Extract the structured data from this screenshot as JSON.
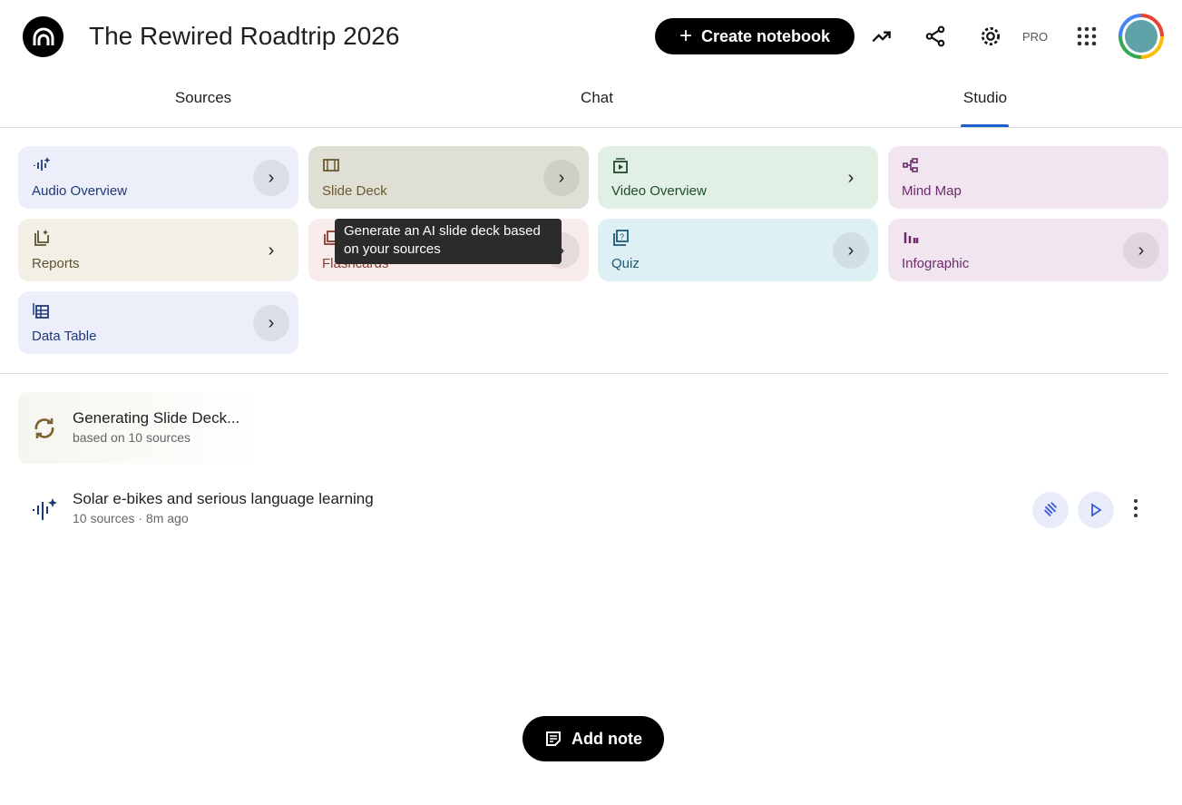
{
  "header": {
    "title": "The Rewired Roadtrip 2026",
    "create_label": "Create notebook",
    "pro_badge": "PRO"
  },
  "tabs": [
    {
      "label": "Sources"
    },
    {
      "label": "Chat"
    },
    {
      "label": "Studio",
      "active": true
    }
  ],
  "studio_tools": [
    {
      "label": "Audio Overview",
      "icon": "audio-waveform-icon",
      "bg": "#eceff9",
      "fg": "#1f3a7a"
    },
    {
      "label": "Slide Deck",
      "icon": "slides-icon",
      "bg": "#e0dfd6",
      "fg": "#6b5a2e"
    },
    {
      "label": "Video Overview",
      "icon": "video-icon",
      "bg": "#e1f0e4",
      "fg": "#1e4d2b"
    },
    {
      "label": "Mind Map",
      "icon": "mind-map-icon",
      "bg": "#f1e6f0",
      "fg": "#6e2a6a"
    },
    {
      "label": "Reports",
      "icon": "reports-icon",
      "bg": "#f2f0e6",
      "fg": "#5e5330"
    },
    {
      "label": "Flashcards",
      "icon": "flashcards-icon",
      "bg": "#f8ecea",
      "fg": "#8a3b2f"
    },
    {
      "label": "Quiz",
      "icon": "quiz-icon",
      "bg": "#dff0f5",
      "fg": "#1a5b73"
    },
    {
      "label": "Infographic",
      "icon": "infographic-icon",
      "bg": "#f1e6f0",
      "fg": "#6e2a6a"
    },
    {
      "label": "Data Table",
      "icon": "table-icon",
      "bg": "#eceff9",
      "fg": "#1f3a7a"
    }
  ],
  "tooltip": "Generate an AI slide deck based on your sources",
  "generating": {
    "title": "Generating Slide Deck...",
    "subtitle": "based on 10 sources"
  },
  "artifacts": [
    {
      "title": "Solar e-bikes and serious language learning",
      "meta": "10 sources · 8m ago"
    }
  ],
  "add_note_label": "Add note"
}
